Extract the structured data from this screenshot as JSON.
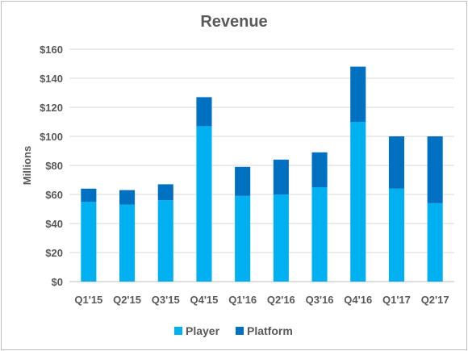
{
  "chart_data": {
    "type": "bar",
    "stacked": true,
    "title": "Revenue",
    "xlabel": "",
    "ylabel": "Millions",
    "categories": [
      "Q1'15",
      "Q2'15",
      "Q3'15",
      "Q4'15",
      "Q1'16",
      "Q2'16",
      "Q3'16",
      "Q4'16",
      "Q1'17",
      "Q2'17"
    ],
    "series": [
      {
        "name": "Player",
        "color": "#00b0f0",
        "values": [
          55,
          53,
          56,
          107,
          59,
          60,
          65,
          110,
          64,
          54
        ]
      },
      {
        "name": "Platform",
        "color": "#0070c0",
        "values": [
          9,
          10,
          11,
          20,
          20,
          24,
          24,
          38,
          36,
          46
        ]
      }
    ],
    "ylim": [
      0,
      160
    ],
    "yticks": [
      0,
      20,
      40,
      60,
      80,
      100,
      120,
      140,
      160
    ],
    "ytick_labels": [
      "$0",
      "$20",
      "$40",
      "$60",
      "$80",
      "$100",
      "$120",
      "$140",
      "$160"
    ],
    "grid": true,
    "legend_position": "bottom"
  }
}
